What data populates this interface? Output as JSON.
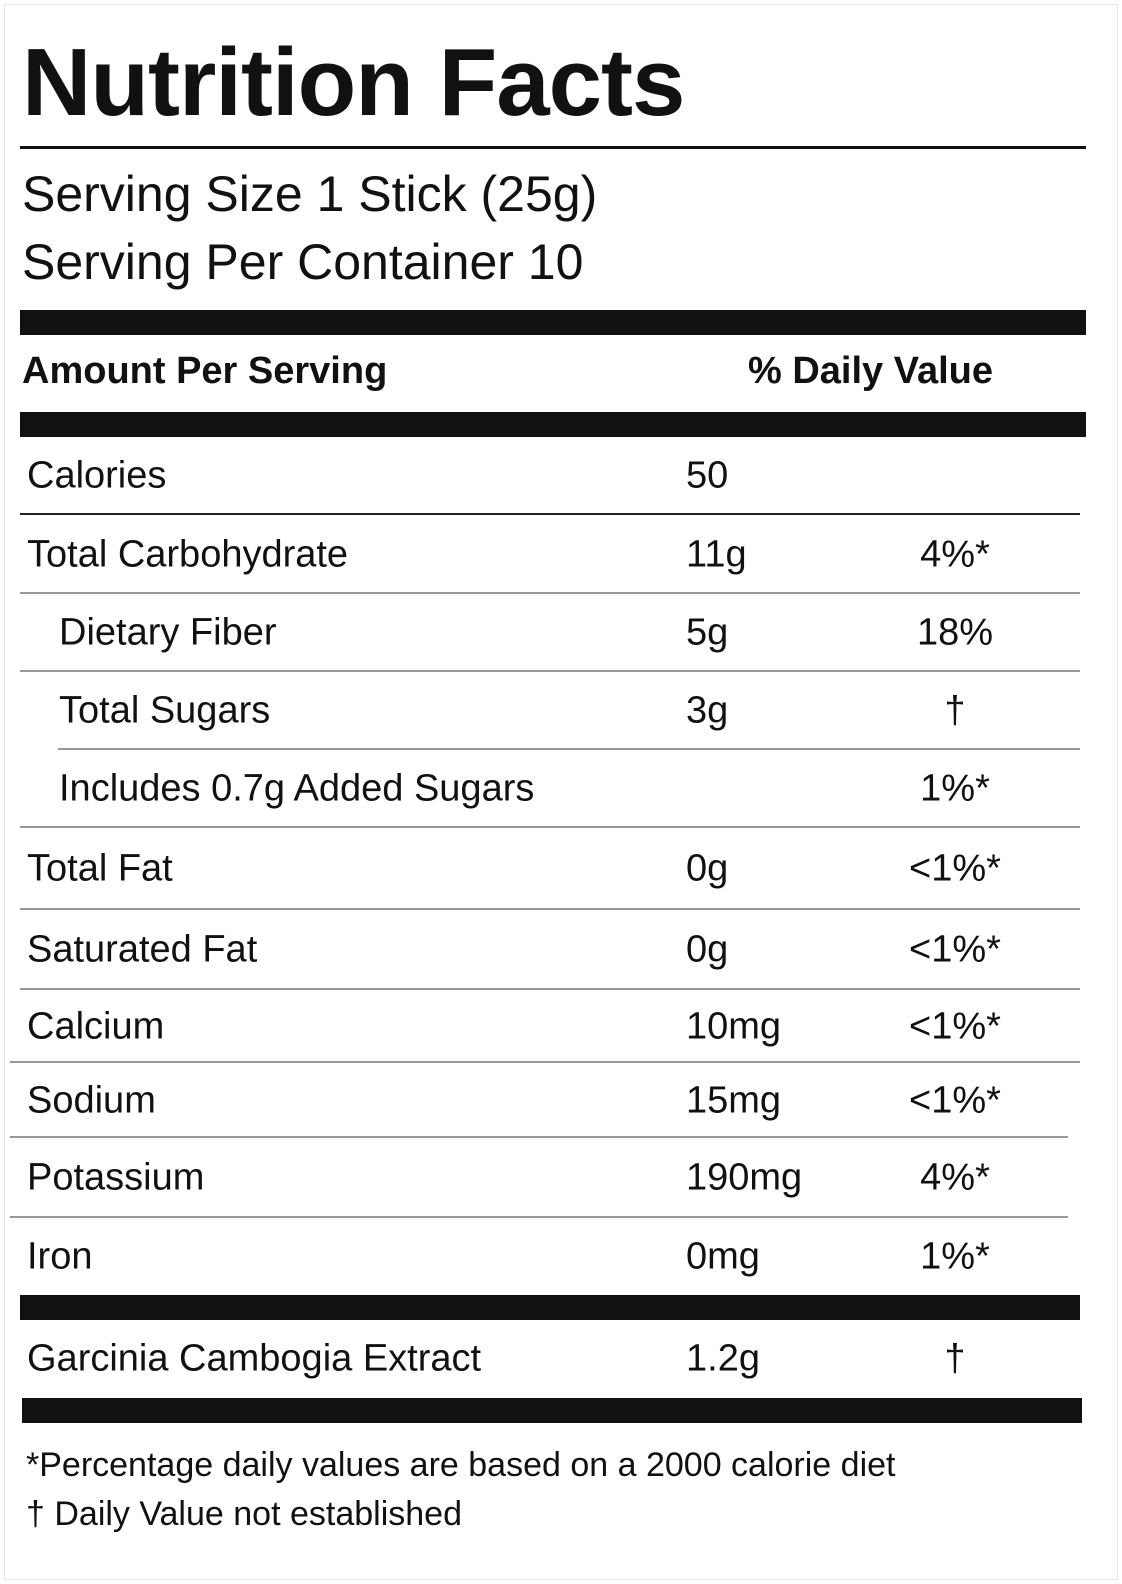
{
  "title": "Nutrition Facts",
  "serving_size": "Serving Size 1 Stick (25g)",
  "servings_per_container": "Serving Per Container 10",
  "header": {
    "amount": "Amount Per Serving",
    "daily_value": "% Daily Value"
  },
  "rows": [
    {
      "name": "Calories",
      "amount": "50",
      "dv": "",
      "indent": false
    },
    {
      "name": "Total Carbohydrate",
      "amount": "11g",
      "dv": "4%*",
      "indent": false
    },
    {
      "name": "Dietary Fiber",
      "amount": "5g",
      "dv": "18%",
      "indent": true
    },
    {
      "name": "Total Sugars",
      "amount": "3g",
      "dv": "†",
      "indent": true
    },
    {
      "name": "Includes 0.7g Added Sugars",
      "amount": "",
      "dv": "1%*",
      "indent": true
    },
    {
      "name": "Total Fat",
      "amount": "0g",
      "dv": "<1%*",
      "indent": false
    },
    {
      "name": "Saturated Fat",
      "amount": "0g",
      "dv": "<1%*",
      "indent": false
    },
    {
      "name": "Calcium",
      "amount": "10mg",
      "dv": "<1%*",
      "indent": false
    },
    {
      "name": "Sodium",
      "amount": "15mg",
      "dv": "<1%*",
      "indent": false
    },
    {
      "name": "Potassium",
      "amount": "190mg",
      "dv": "4%*",
      "indent": false
    },
    {
      "name": "Iron",
      "amount": "0mg",
      "dv": "1%*",
      "indent": false
    }
  ],
  "extract": {
    "name": "Garcinia Cambogia Extract",
    "amount": "1.2g",
    "dv": "†"
  },
  "footnotes": [
    "*Percentage daily values are based on a 2000 calorie diet",
    "† Daily Value not established"
  ]
}
